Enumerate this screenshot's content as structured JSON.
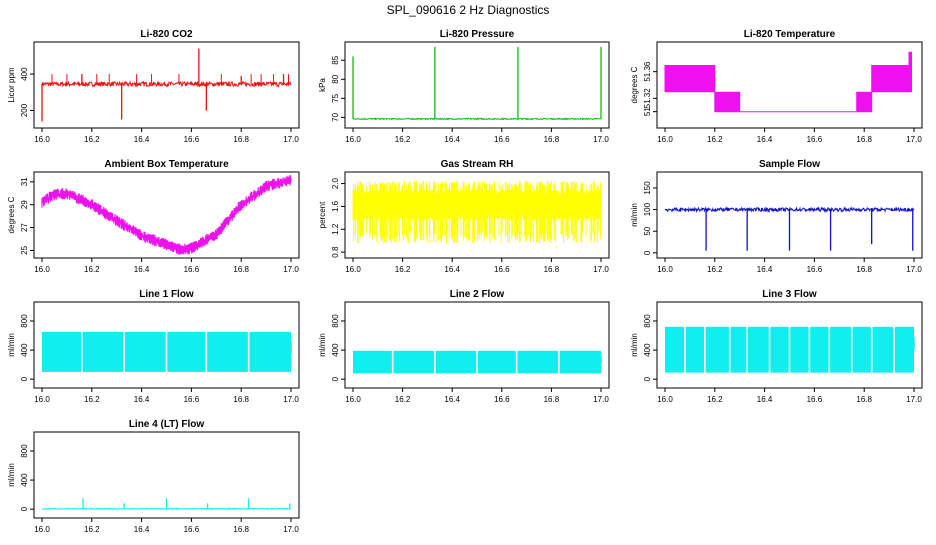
{
  "page_title": "SPL_090616  2 Hz Diagnostics",
  "chart_data": [
    {
      "id": "co2",
      "type": "line",
      "title": "Li-820 CO2",
      "ylabel": "Licor ppm",
      "color": "#ee1111",
      "xlim": [
        16.0,
        17.0
      ],
      "ylim": [
        120,
        560
      ],
      "xticks": [
        "16.0",
        "16.2",
        "16.4",
        "16.6",
        "16.8",
        "17.0"
      ],
      "yticks": [
        {
          "v": 200,
          "t": "200"
        },
        {
          "v": 400,
          "t": "400"
        }
      ],
      "series": {
        "kind": "baseline",
        "base": 345,
        "noise": 12,
        "spikes": [
          {
            "x": 16.0,
            "y": 140
          },
          {
            "x": 16.16,
            "y": 400
          },
          {
            "x": 16.32,
            "y": 150
          },
          {
            "x": 16.63,
            "y": 540
          },
          {
            "x": 16.66,
            "y": 200
          },
          {
            "x": 16.8,
            "y": 390
          },
          {
            "x": 16.97,
            "y": 400
          }
        ]
      }
    },
    {
      "id": "pressure",
      "type": "line",
      "title": "Li-820 Pressure",
      "ylabel": "kPa",
      "color": "#11bb11",
      "xlim": [
        16.0,
        17.0
      ],
      "ylim": [
        68,
        89
      ],
      "xticks": [
        "16.0",
        "16.2",
        "16.4",
        "16.6",
        "16.8",
        "17.0"
      ],
      "yticks": [
        {
          "v": 70,
          "t": "70"
        },
        {
          "v": 75,
          "t": "75"
        },
        {
          "v": 80,
          "t": "80"
        },
        {
          "v": 85,
          "t": "85"
        }
      ],
      "series": {
        "kind": "baseline",
        "base": 69.6,
        "noise": 0.15,
        "spikes": [
          {
            "x": 16.0,
            "y": 86
          },
          {
            "x": 16.33,
            "y": 88.5
          },
          {
            "x": 16.665,
            "y": 88.5
          },
          {
            "x": 17.0,
            "y": 88.5
          }
        ]
      }
    },
    {
      "id": "temp",
      "type": "step",
      "title": "Li-820 Temperature",
      "ylabel": "degrees C",
      "color": "#ee11ee",
      "xlim": [
        16.0,
        17.0
      ],
      "ylim": [
        51.28,
        51.4
      ],
      "xticks": [
        "16.0",
        "16.2",
        "16.4",
        "16.6",
        "16.8",
        "17.0"
      ],
      "yticks": [
        {
          "v": 51.3,
          "t": "51"
        },
        {
          "v": 51.32,
          "t": "51.32"
        },
        {
          "v": 51.36,
          "t": "51.36"
        }
      ],
      "series": {
        "kind": "levels",
        "segments": [
          {
            "x0": 16.0,
            "x1": 16.2,
            "lo": 51.33,
            "hi": 51.37
          },
          {
            "x0": 16.2,
            "x1": 16.3,
            "lo": 51.3,
            "hi": 51.33
          },
          {
            "x0": 16.3,
            "x1": 16.77,
            "lo": 51.3,
            "hi": 51.3
          },
          {
            "x0": 16.77,
            "x1": 16.83,
            "lo": 51.3,
            "hi": 51.33
          },
          {
            "x0": 16.83,
            "x1": 16.99,
            "lo": 51.33,
            "hi": 51.37
          },
          {
            "x0": 16.98,
            "x1": 16.99,
            "lo": 51.37,
            "hi": 51.39
          }
        ]
      }
    },
    {
      "id": "ambient",
      "type": "line",
      "title": "Ambient Box Temperature",
      "ylabel": "degrees C",
      "color": "#ee11ee",
      "xlim": [
        16.0,
        17.0
      ],
      "ylim": [
        24.6,
        31.6
      ],
      "xticks": [
        "16.0",
        "16.2",
        "16.4",
        "16.6",
        "16.8",
        "17.0"
      ],
      "yticks": [
        {
          "v": 25,
          "t": "25"
        },
        {
          "v": 27,
          "t": "27"
        },
        {
          "v": 29,
          "t": "29"
        },
        {
          "v": 31,
          "t": "31"
        }
      ],
      "series": {
        "kind": "curve",
        "band": 0.5,
        "points": [
          {
            "x": 16.0,
            "y": 29.2
          },
          {
            "x": 16.05,
            "y": 29.9
          },
          {
            "x": 16.1,
            "y": 30.0
          },
          {
            "x": 16.2,
            "y": 29.0
          },
          {
            "x": 16.3,
            "y": 27.6
          },
          {
            "x": 16.4,
            "y": 26.3
          },
          {
            "x": 16.5,
            "y": 25.5
          },
          {
            "x": 16.55,
            "y": 25.1
          },
          {
            "x": 16.6,
            "y": 25.2
          },
          {
            "x": 16.7,
            "y": 26.4
          },
          {
            "x": 16.8,
            "y": 29.0
          },
          {
            "x": 16.9,
            "y": 30.6
          },
          {
            "x": 17.0,
            "y": 31.2
          }
        ]
      }
    },
    {
      "id": "rh",
      "type": "line",
      "title": "Gas Stream RH",
      "ylabel": "percent",
      "color": "#ffff00",
      "xlim": [
        16.0,
        17.0
      ],
      "ylim": [
        0.75,
        2.15
      ],
      "xticks": [
        "16.0",
        "16.2",
        "16.4",
        "16.6",
        "16.8",
        "17.0"
      ],
      "yticks": [
        {
          "v": 0.8,
          "t": "0.8"
        },
        {
          "v": 1.2,
          "t": "1.2"
        },
        {
          "v": 1.6,
          "t": "1.6"
        },
        {
          "v": 2.0,
          "t": "2.0"
        }
      ],
      "series": {
        "kind": "dense",
        "lo": 0.95,
        "hi": 2.05,
        "core_lo": 1.35,
        "core_hi": 1.9
      }
    },
    {
      "id": "sample",
      "type": "line",
      "title": "Sample Flow",
      "ylabel": "ml/min",
      "color": "#1111cc",
      "xlim": [
        16.0,
        17.0
      ],
      "ylim": [
        -5,
        180
      ],
      "xticks": [
        "16.0",
        "16.2",
        "16.4",
        "16.6",
        "16.8",
        "17.0"
      ],
      "yticks": [
        {
          "v": 0,
          "t": "0"
        },
        {
          "v": 50,
          "t": "50"
        },
        {
          "v": 100,
          "t": "100"
        },
        {
          "v": 150,
          "t": "150"
        }
      ],
      "series": {
        "kind": "baseline",
        "base": 100,
        "noise": 4,
        "spikes": [
          {
            "x": 16.165,
            "y": 5
          },
          {
            "x": 16.33,
            "y": 5
          },
          {
            "x": 16.5,
            "y": 5
          },
          {
            "x": 16.665,
            "y": 5
          },
          {
            "x": 16.83,
            "y": 20
          },
          {
            "x": 16.995,
            "y": 5
          }
        ]
      }
    },
    {
      "id": "line1",
      "type": "line",
      "title": "Line 1 Flow",
      "ylabel": "ml/min",
      "color": "#11eeee",
      "xlim": [
        16.0,
        17.0
      ],
      "ylim": [
        -80,
        1020
      ],
      "xticks": [
        "16.0",
        "16.2",
        "16.4",
        "16.6",
        "16.8",
        "17.0"
      ],
      "yticks": [
        {
          "v": 0,
          "t": "0"
        },
        {
          "v": 400,
          "t": "400"
        },
        {
          "v": 800,
          "t": "800"
        }
      ],
      "series": {
        "kind": "band",
        "lo": 100,
        "hi": 650,
        "gaps": [
          16.16,
          16.33,
          16.5,
          16.66,
          16.83
        ]
      }
    },
    {
      "id": "line2",
      "type": "line",
      "title": "Line 2 Flow",
      "ylabel": "ml/min",
      "color": "#11eeee",
      "xlim": [
        16.0,
        17.0
      ],
      "ylim": [
        -80,
        1020
      ],
      "xticks": [
        "16.0",
        "16.2",
        "16.4",
        "16.6",
        "16.8",
        "17.0"
      ],
      "yticks": [
        {
          "v": 0,
          "t": "0"
        },
        {
          "v": 400,
          "t": "400"
        },
        {
          "v": 800,
          "t": "800"
        }
      ],
      "series": {
        "kind": "band",
        "lo": 80,
        "hi": 390,
        "gaps": [
          16.16,
          16.33,
          16.5,
          16.66,
          16.83
        ]
      }
    },
    {
      "id": "line3",
      "type": "line",
      "title": "Line 3 Flow",
      "ylabel": "ml/min",
      "color": "#11eeee",
      "xlim": [
        16.0,
        17.0
      ],
      "ylim": [
        -80,
        1020
      ],
      "xticks": [
        "16.0",
        "16.2",
        "16.4",
        "16.6",
        "16.8",
        "17.0"
      ],
      "yticks": [
        {
          "v": 0,
          "t": "0"
        },
        {
          "v": 400,
          "t": "400"
        },
        {
          "v": 800,
          "t": "800"
        }
      ],
      "series": {
        "kind": "band",
        "lo": 90,
        "hi": 720,
        "gaps": [
          16.08,
          16.16,
          16.26,
          16.33,
          16.42,
          16.5,
          16.58,
          16.66,
          16.75,
          16.83,
          16.92
        ]
      }
    },
    {
      "id": "line4",
      "type": "line",
      "title": "Line 4 (LT) Flow",
      "ylabel": "ml/min",
      "color": "#11eeee",
      "xlim": [
        16.0,
        17.0
      ],
      "ylim": [
        -80,
        1020
      ],
      "xticks": [
        "16.0",
        "16.2",
        "16.4",
        "16.6",
        "16.8",
        "17.0"
      ],
      "yticks": [
        {
          "v": 0,
          "t": "0"
        },
        {
          "v": 400,
          "t": "400"
        },
        {
          "v": 800,
          "t": "800"
        }
      ],
      "series": {
        "kind": "baseline",
        "base": 5,
        "noise": 6,
        "spikes": [
          {
            "x": 16.165,
            "y": 150
          },
          {
            "x": 16.33,
            "y": 80
          },
          {
            "x": 16.5,
            "y": 150
          },
          {
            "x": 16.665,
            "y": 80
          },
          {
            "x": 16.83,
            "y": 150
          },
          {
            "x": 16.995,
            "y": 80
          }
        ]
      }
    }
  ]
}
